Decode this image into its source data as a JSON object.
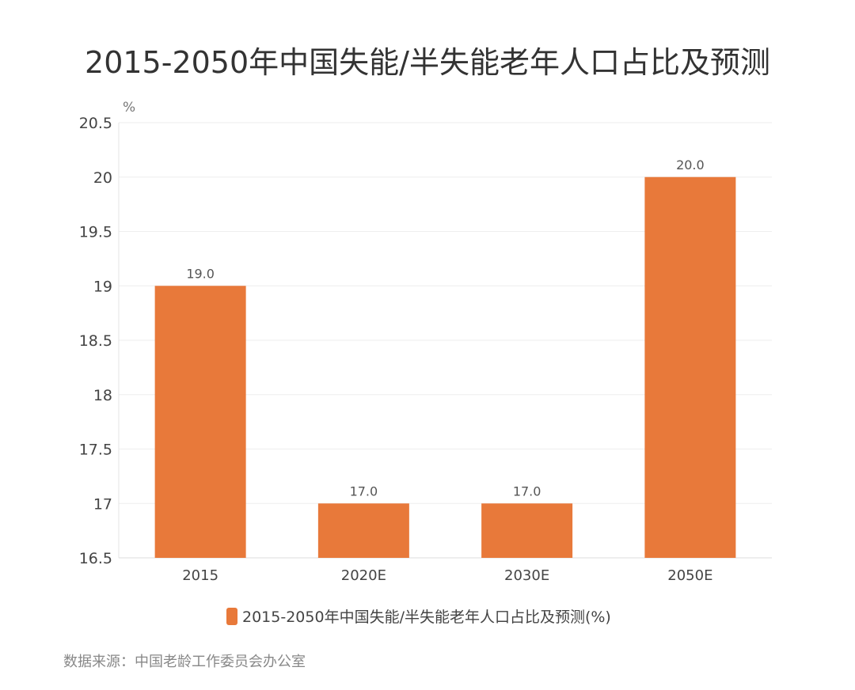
{
  "chart_data": {
    "type": "bar",
    "title": "2015-2050年中国失能/半失能老年人口占比及预测",
    "ylabel": "%",
    "xlabel": "",
    "categories": [
      "2015",
      "2020E",
      "2030E",
      "2050E"
    ],
    "series": [
      {
        "name": "2015-2050年中国失能/半失能老年人口占比及预测(%)",
        "values": [
          19.0,
          17.0,
          17.0,
          20.0
        ]
      }
    ],
    "data_labels": [
      "19.0",
      "17.0",
      "17.0",
      "20.0"
    ],
    "ylim": [
      16.5,
      20.5
    ],
    "yticks": [
      "16.5",
      "17",
      "17.5",
      "18",
      "18.5",
      "19",
      "19.5",
      "20",
      "20.5"
    ],
    "grid": true,
    "legend": "bottom",
    "colors": {
      "bar": "#E8793A",
      "grid": "#eeeeee",
      "text": "#444444"
    }
  },
  "source": "数据来源：中国老龄工作委员会办公室"
}
